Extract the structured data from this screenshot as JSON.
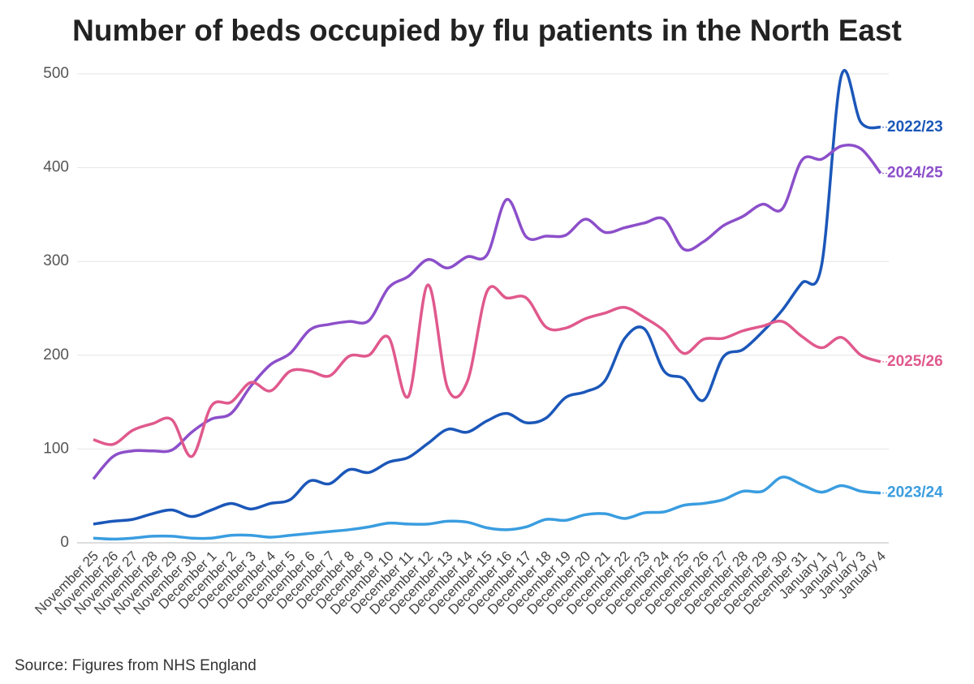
{
  "chart_data": {
    "type": "line",
    "title": "Number of beds occupied by flu patients in the North East",
    "source": "Source: Figures from NHS England",
    "categories": [
      "November 25",
      "November 26",
      "November 27",
      "November 28",
      "November 29",
      "November 30",
      "December 1",
      "December 2",
      "December 3",
      "December 4",
      "December 5",
      "December 6",
      "December 7",
      "December 8",
      "December 9",
      "December 10",
      "December 11",
      "December 12",
      "December 13",
      "December 14",
      "December 15",
      "December 16",
      "December 17",
      "December 18",
      "December 19",
      "December 20",
      "December 21",
      "December 22",
      "December 23",
      "December 24",
      "December 25",
      "December 26",
      "December 27",
      "December 28",
      "December 29",
      "December 30",
      "December 31",
      "January 1",
      "January 2",
      "January 3",
      "January 4"
    ],
    "series": [
      {
        "name": "2022/23",
        "color": "#1b57b9",
        "values": [
          20,
          23,
          25,
          31,
          35,
          28,
          35,
          42,
          36,
          42,
          46,
          66,
          63,
          78,
          75,
          86,
          91,
          106,
          121,
          118,
          130,
          138,
          128,
          133,
          155,
          161,
          173,
          218,
          228,
          183,
          175,
          152,
          198,
          206,
          225,
          248,
          277,
          296,
          498,
          448,
          443
        ]
      },
      {
        "name": "2024/25",
        "color": "#8c4fca",
        "values": [
          68,
          92,
          98,
          98,
          99,
          118,
          132,
          138,
          167,
          190,
          202,
          227,
          233,
          236,
          237,
          272,
          284,
          302,
          293,
          305,
          307,
          366,
          326,
          327,
          328,
          345,
          331,
          336,
          341,
          345,
          313,
          321,
          338,
          348,
          361,
          356,
          408,
          409,
          423,
          420,
          394
        ]
      },
      {
        "name": "2025/26",
        "color": "#e0598d",
        "values": [
          110,
          105,
          120,
          127,
          131,
          92,
          146,
          150,
          171,
          162,
          183,
          183,
          178,
          199,
          200,
          219,
          156,
          275,
          165,
          172,
          268,
          261,
          261,
          230,
          229,
          239,
          245,
          251,
          240,
          226,
          202,
          217,
          218,
          226,
          231,
          236,
          220,
          208,
          219,
          200,
          193
        ]
      },
      {
        "name": "2023/24",
        "color": "#3a9de0",
        "values": [
          5,
          4,
          5,
          7,
          7,
          5,
          5,
          8,
          8,
          6,
          8,
          10,
          12,
          14,
          17,
          21,
          20,
          20,
          23,
          22,
          16,
          14,
          17,
          25,
          24,
          30,
          31,
          26,
          32,
          33,
          40,
          42,
          46,
          55,
          55,
          70,
          62,
          54,
          61,
          55,
          53
        ]
      }
    ],
    "ylim": [
      0,
      500
    ],
    "yticks": [
      0,
      100,
      200,
      300,
      400,
      500
    ],
    "grid": true
  }
}
